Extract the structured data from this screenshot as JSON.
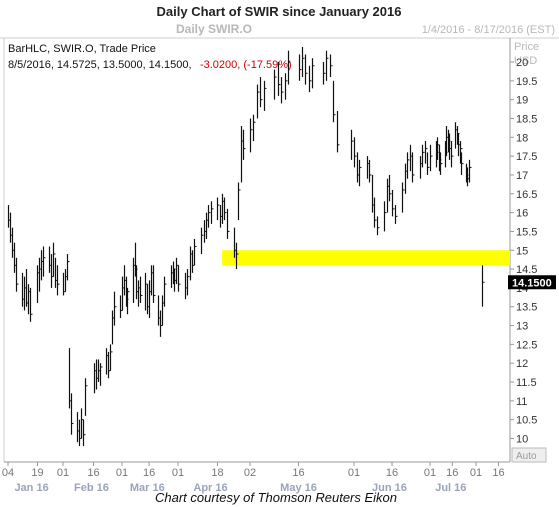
{
  "header": {
    "title": "Daily Chart of SWIR since January 2016",
    "instrument": "Daily SWIR.O",
    "date_range": "1/4/2016 - 8/17/2016 (EST)"
  },
  "legend": {
    "line1": "BarHLC, SWIR.O, Trade Price",
    "line2_values": "8/5/2016, 14.5725, 13.5000, 14.1500,",
    "line2_change": "-3.0200, (-17.59%)"
  },
  "y_axis_label": {
    "line1": "Price",
    "line2": "USD"
  },
  "auto_button": "Auto",
  "footer": "Chart courtesy of Thomson Reuters Eikon",
  "colors": {
    "bars": "#111111",
    "highlight": "#ffff00",
    "label_bg": "#000000",
    "change": "#cc0000"
  },
  "chart_data": {
    "type": "bar",
    "style": "HLC bars (high-low-close)",
    "series_name": "SWIR.O Trade Price",
    "ylim": [
      9.6,
      20.4
    ],
    "y_ticks": [
      10,
      10.5,
      11,
      11.5,
      12,
      12.5,
      13,
      13.5,
      14,
      14.5,
      15,
      15.5,
      16,
      16.5,
      17,
      17.5,
      18,
      18.5,
      19,
      19.5,
      20
    ],
    "x_tick_labels": [
      "04",
      "19",
      "01",
      "16",
      "01",
      "16",
      "01",
      "18",
      "02",
      "16",
      "01",
      "16",
      "01",
      "16",
      "01",
      "16"
    ],
    "x_month_labels": [
      "Jan 16",
      "Feb 16",
      "Mar 16",
      "Apr 16",
      "May 16",
      "Jun 16",
      "Jul 16"
    ],
    "last_price_label": "14.1500",
    "highlight_band": {
      "y_low": 14.6,
      "y_high": 15.0,
      "from_date": "2016-04-20"
    },
    "bars": [
      {
        "d": "2016-01-04",
        "h": 16.2,
        "l": 15.6,
        "c": 15.8
      },
      {
        "d": "2016-01-05",
        "h": 16.0,
        "l": 15.2,
        "c": 15.4
      },
      {
        "d": "2016-01-06",
        "h": 15.6,
        "l": 14.8,
        "c": 15.0
      },
      {
        "d": "2016-01-07",
        "h": 15.2,
        "l": 14.4,
        "c": 14.6
      },
      {
        "d": "2016-01-08",
        "h": 14.8,
        "l": 13.9,
        "c": 14.1
      },
      {
        "d": "2016-01-11",
        "h": 14.4,
        "l": 13.5,
        "c": 13.7
      },
      {
        "d": "2016-01-12",
        "h": 14.3,
        "l": 13.4,
        "c": 14.0
      },
      {
        "d": "2016-01-13",
        "h": 14.5,
        "l": 13.5,
        "c": 13.6
      },
      {
        "d": "2016-01-14",
        "h": 14.1,
        "l": 13.3,
        "c": 13.9
      },
      {
        "d": "2016-01-15",
        "h": 14.0,
        "l": 13.1,
        "c": 13.3
      },
      {
        "d": "2016-01-19",
        "h": 14.6,
        "l": 13.6,
        "c": 14.4
      },
      {
        "d": "2016-01-20",
        "h": 14.8,
        "l": 13.9,
        "c": 14.5
      },
      {
        "d": "2016-01-21",
        "h": 15.0,
        "l": 14.2,
        "c": 14.7
      },
      {
        "d": "2016-01-22",
        "h": 15.1,
        "l": 14.3,
        "c": 14.8
      },
      {
        "d": "2016-01-25",
        "h": 15.1,
        "l": 14.4,
        "c": 14.6
      },
      {
        "d": "2016-01-26",
        "h": 14.9,
        "l": 14.0,
        "c": 14.3
      },
      {
        "d": "2016-01-27",
        "h": 15.2,
        "l": 14.3,
        "c": 14.9
      },
      {
        "d": "2016-01-28",
        "h": 14.8,
        "l": 14.0,
        "c": 14.2
      },
      {
        "d": "2016-01-29",
        "h": 14.6,
        "l": 13.8,
        "c": 14.1
      },
      {
        "d": "2016-02-01",
        "h": 14.4,
        "l": 13.8,
        "c": 13.9
      },
      {
        "d": "2016-02-02",
        "h": 14.5,
        "l": 13.9,
        "c": 14.3
      },
      {
        "d": "2016-02-03",
        "h": 14.9,
        "l": 14.2,
        "c": 14.7
      },
      {
        "d": "2016-02-04",
        "h": 12.4,
        "l": 10.8,
        "c": 11.0
      },
      {
        "d": "2016-02-05",
        "h": 11.2,
        "l": 10.1,
        "c": 10.4
      },
      {
        "d": "2016-02-08",
        "h": 10.7,
        "l": 9.9,
        "c": 10.2
      },
      {
        "d": "2016-02-09",
        "h": 10.5,
        "l": 9.8,
        "c": 10.0
      },
      {
        "d": "2016-02-10",
        "h": 10.8,
        "l": 10.0,
        "c": 10.5
      },
      {
        "d": "2016-02-11",
        "h": 10.5,
        "l": 9.8,
        "c": 10.1
      },
      {
        "d": "2016-02-12",
        "h": 11.6,
        "l": 10.6,
        "c": 11.4
      },
      {
        "d": "2016-02-16",
        "h": 12.0,
        "l": 11.2,
        "c": 11.8
      },
      {
        "d": "2016-02-17",
        "h": 12.1,
        "l": 11.3,
        "c": 11.6
      },
      {
        "d": "2016-02-18",
        "h": 12.1,
        "l": 11.5,
        "c": 11.8
      },
      {
        "d": "2016-02-19",
        "h": 12.0,
        "l": 11.4,
        "c": 11.9
      },
      {
        "d": "2016-02-22",
        "h": 12.4,
        "l": 11.7,
        "c": 12.2
      },
      {
        "d": "2016-02-23",
        "h": 12.3,
        "l": 11.6,
        "c": 11.8
      },
      {
        "d": "2016-02-24",
        "h": 12.5,
        "l": 11.8,
        "c": 12.3
      },
      {
        "d": "2016-02-25",
        "h": 13.4,
        "l": 12.5,
        "c": 13.2
      },
      {
        "d": "2016-02-26",
        "h": 13.9,
        "l": 13.0,
        "c": 13.5
      },
      {
        "d": "2016-02-29",
        "h": 13.8,
        "l": 13.2,
        "c": 13.4
      },
      {
        "d": "2016-03-01",
        "h": 14.3,
        "l": 13.4,
        "c": 14.0
      },
      {
        "d": "2016-03-02",
        "h": 14.6,
        "l": 13.8,
        "c": 14.2
      },
      {
        "d": "2016-03-03",
        "h": 14.3,
        "l": 13.5,
        "c": 13.7
      },
      {
        "d": "2016-03-04",
        "h": 14.0,
        "l": 13.3,
        "c": 13.9
      },
      {
        "d": "2016-03-07",
        "h": 14.8,
        "l": 13.6,
        "c": 14.6
      },
      {
        "d": "2016-03-08",
        "h": 15.2,
        "l": 14.3,
        "c": 14.5
      },
      {
        "d": "2016-03-09",
        "h": 14.6,
        "l": 13.7,
        "c": 13.9
      },
      {
        "d": "2016-03-10",
        "h": 14.2,
        "l": 13.5,
        "c": 14.0
      },
      {
        "d": "2016-03-11",
        "h": 14.3,
        "l": 13.6,
        "c": 13.8
      },
      {
        "d": "2016-03-14",
        "h": 14.4,
        "l": 13.4,
        "c": 14.1
      },
      {
        "d": "2016-03-15",
        "h": 14.1,
        "l": 13.3,
        "c": 13.5
      },
      {
        "d": "2016-03-16",
        "h": 14.2,
        "l": 13.2,
        "c": 13.9
      },
      {
        "d": "2016-03-17",
        "h": 14.6,
        "l": 13.8,
        "c": 14.4
      },
      {
        "d": "2016-03-18",
        "h": 14.6,
        "l": 13.6,
        "c": 13.8
      },
      {
        "d": "2016-03-21",
        "h": 13.8,
        "l": 13.0,
        "c": 13.2
      },
      {
        "d": "2016-03-22",
        "h": 13.4,
        "l": 12.7,
        "c": 13.0
      },
      {
        "d": "2016-03-23",
        "h": 13.8,
        "l": 13.0,
        "c": 13.6
      },
      {
        "d": "2016-03-24",
        "h": 14.3,
        "l": 13.5,
        "c": 14.1
      },
      {
        "d": "2016-03-28",
        "h": 14.6,
        "l": 14.0,
        "c": 14.4
      },
      {
        "d": "2016-03-29",
        "h": 14.7,
        "l": 14.1,
        "c": 14.5
      },
      {
        "d": "2016-03-30",
        "h": 14.5,
        "l": 13.9,
        "c": 14.2
      },
      {
        "d": "2016-03-31",
        "h": 14.8,
        "l": 14.1,
        "c": 14.6
      },
      {
        "d": "2016-04-01",
        "h": 14.6,
        "l": 13.9,
        "c": 14.1
      },
      {
        "d": "2016-04-04",
        "h": 14.4,
        "l": 13.7,
        "c": 14.0
      },
      {
        "d": "2016-04-05",
        "h": 14.5,
        "l": 13.8,
        "c": 14.3
      },
      {
        "d": "2016-04-06",
        "h": 15.1,
        "l": 14.2,
        "c": 14.9
      },
      {
        "d": "2016-04-07",
        "h": 15.0,
        "l": 14.4,
        "c": 14.6
      },
      {
        "d": "2016-04-08",
        "h": 15.3,
        "l": 14.6,
        "c": 15.1
      },
      {
        "d": "2016-04-11",
        "h": 15.6,
        "l": 14.9,
        "c": 15.4
      },
      {
        "d": "2016-04-12",
        "h": 15.8,
        "l": 15.2,
        "c": 15.5
      },
      {
        "d": "2016-04-13",
        "h": 16.0,
        "l": 15.3,
        "c": 15.8
      },
      {
        "d": "2016-04-14",
        "h": 16.2,
        "l": 15.6,
        "c": 16.0
      },
      {
        "d": "2016-04-15",
        "h": 16.3,
        "l": 15.7,
        "c": 16.1
      },
      {
        "d": "2016-04-18",
        "h": 16.4,
        "l": 15.8,
        "c": 16.2
      },
      {
        "d": "2016-04-19",
        "h": 16.2,
        "l": 15.6,
        "c": 15.9
      },
      {
        "d": "2016-04-20",
        "h": 16.5,
        "l": 15.7,
        "c": 16.3
      },
      {
        "d": "2016-04-21",
        "h": 16.4,
        "l": 15.8,
        "c": 16.0
      },
      {
        "d": "2016-04-22",
        "h": 16.1,
        "l": 15.3,
        "c": 15.5
      },
      {
        "d": "2016-04-25",
        "h": 15.6,
        "l": 14.8,
        "c": 15.0
      },
      {
        "d": "2016-04-26",
        "h": 15.2,
        "l": 14.5,
        "c": 14.9
      },
      {
        "d": "2016-04-27",
        "h": 16.8,
        "l": 15.8,
        "c": 16.6
      },
      {
        "d": "2016-04-28",
        "h": 18.3,
        "l": 16.8,
        "c": 17.9
      },
      {
        "d": "2016-04-29",
        "h": 18.2,
        "l": 17.4,
        "c": 17.7
      },
      {
        "d": "2016-05-02",
        "h": 18.5,
        "l": 17.6,
        "c": 18.2
      },
      {
        "d": "2016-05-03",
        "h": 18.6,
        "l": 17.9,
        "c": 18.4
      },
      {
        "d": "2016-05-04",
        "h": 19.4,
        "l": 18.5,
        "c": 19.2
      },
      {
        "d": "2016-05-05",
        "h": 19.6,
        "l": 18.8,
        "c": 19.0
      },
      {
        "d": "2016-05-06",
        "h": 19.5,
        "l": 18.7,
        "c": 19.3
      },
      {
        "d": "2016-05-09",
        "h": 19.8,
        "l": 19.0,
        "c": 19.6
      },
      {
        "d": "2016-05-10",
        "h": 20.0,
        "l": 19.1,
        "c": 19.4
      },
      {
        "d": "2016-05-11",
        "h": 19.6,
        "l": 18.9,
        "c": 19.2
      },
      {
        "d": "2016-05-12",
        "h": 19.7,
        "l": 19.0,
        "c": 19.5
      },
      {
        "d": "2016-05-13",
        "h": 20.3,
        "l": 19.4,
        "c": 20.0
      },
      {
        "d": "2016-05-16",
        "h": 20.2,
        "l": 19.5,
        "c": 19.8
      },
      {
        "d": "2016-05-17",
        "h": 20.4,
        "l": 19.6,
        "c": 20.1
      },
      {
        "d": "2016-05-18",
        "h": 20.2,
        "l": 19.4,
        "c": 19.7
      },
      {
        "d": "2016-05-19",
        "h": 19.9,
        "l": 19.2,
        "c": 19.5
      },
      {
        "d": "2016-05-20",
        "h": 20.1,
        "l": 19.3,
        "c": 19.9
      },
      {
        "d": "2016-05-23",
        "h": 20.0,
        "l": 19.4,
        "c": 19.7
      },
      {
        "d": "2016-05-24",
        "h": 20.3,
        "l": 19.5,
        "c": 20.1
      },
      {
        "d": "2016-05-25",
        "h": 20.2,
        "l": 19.6,
        "c": 19.9
      },
      {
        "d": "2016-05-26",
        "h": 19.5,
        "l": 18.4,
        "c": 18.6
      },
      {
        "d": "2016-05-27",
        "h": 18.7,
        "l": 17.6,
        "c": 17.8
      },
      {
        "d": "2016-05-31",
        "h": 18.2,
        "l": 17.4,
        "c": 17.9
      },
      {
        "d": "2016-06-01",
        "h": 18.0,
        "l": 17.2,
        "c": 17.5
      },
      {
        "d": "2016-06-02",
        "h": 17.6,
        "l": 16.8,
        "c": 17.0
      },
      {
        "d": "2016-06-03",
        "h": 17.4,
        "l": 16.7,
        "c": 17.2
      },
      {
        "d": "2016-06-06",
        "h": 17.5,
        "l": 16.9,
        "c": 17.3
      },
      {
        "d": "2016-06-07",
        "h": 17.4,
        "l": 16.8,
        "c": 17.0
      },
      {
        "d": "2016-06-08",
        "h": 17.0,
        "l": 16.0,
        "c": 16.2
      },
      {
        "d": "2016-06-09",
        "h": 16.4,
        "l": 15.6,
        "c": 15.8
      },
      {
        "d": "2016-06-10",
        "h": 15.9,
        "l": 15.4,
        "c": 15.6
      },
      {
        "d": "2016-06-13",
        "h": 16.3,
        "l": 15.5,
        "c": 16.0
      },
      {
        "d": "2016-06-14",
        "h": 16.9,
        "l": 16.0,
        "c": 16.7
      },
      {
        "d": "2016-06-15",
        "h": 17.0,
        "l": 16.3,
        "c": 16.5
      },
      {
        "d": "2016-06-16",
        "h": 16.6,
        "l": 15.9,
        "c": 16.1
      },
      {
        "d": "2016-06-17",
        "h": 16.2,
        "l": 15.7,
        "c": 15.9
      },
      {
        "d": "2016-06-20",
        "h": 16.8,
        "l": 16.0,
        "c": 16.6
      },
      {
        "d": "2016-06-21",
        "h": 17.3,
        "l": 16.5,
        "c": 17.1
      },
      {
        "d": "2016-06-22",
        "h": 17.6,
        "l": 16.9,
        "c": 17.4
      },
      {
        "d": "2016-06-23",
        "h": 17.8,
        "l": 17.1,
        "c": 17.5
      },
      {
        "d": "2016-06-24",
        "h": 17.6,
        "l": 16.8,
        "c": 17.0
      },
      {
        "d": "2016-06-27",
        "h": 17.5,
        "l": 16.9,
        "c": 17.3
      },
      {
        "d": "2016-06-28",
        "h": 17.8,
        "l": 17.2,
        "c": 17.6
      },
      {
        "d": "2016-06-29",
        "h": 17.9,
        "l": 17.3,
        "c": 17.7
      },
      {
        "d": "2016-06-30",
        "h": 17.6,
        "l": 17.0,
        "c": 17.2
      },
      {
        "d": "2016-07-01",
        "h": 17.8,
        "l": 17.1,
        "c": 17.5
      },
      {
        "d": "2016-07-05",
        "h": 17.9,
        "l": 17.2,
        "c": 17.6
      },
      {
        "d": "2016-07-06",
        "h": 18.0,
        "l": 17.4,
        "c": 17.8
      },
      {
        "d": "2016-07-07",
        "h": 17.8,
        "l": 17.1,
        "c": 17.4
      },
      {
        "d": "2016-07-08",
        "h": 17.6,
        "l": 17.0,
        "c": 17.3
      },
      {
        "d": "2016-07-11",
        "h": 17.9,
        "l": 17.2,
        "c": 17.6
      },
      {
        "d": "2016-07-12",
        "h": 18.3,
        "l": 17.5,
        "c": 18.0
      },
      {
        "d": "2016-07-13",
        "h": 18.2,
        "l": 17.6,
        "c": 17.9
      },
      {
        "d": "2016-07-14",
        "h": 18.1,
        "l": 17.4,
        "c": 17.7
      },
      {
        "d": "2016-07-15",
        "h": 17.9,
        "l": 17.2,
        "c": 17.5
      },
      {
        "d": "2016-07-18",
        "h": 18.4,
        "l": 17.7,
        "c": 18.2
      },
      {
        "d": "2016-07-19",
        "h": 18.3,
        "l": 17.8,
        "c": 18.1
      },
      {
        "d": "2016-07-20",
        "h": 18.1,
        "l": 17.5,
        "c": 17.8
      },
      {
        "d": "2016-07-21",
        "h": 17.9,
        "l": 17.3,
        "c": 17.7
      },
      {
        "d": "2016-07-22",
        "h": 17.6,
        "l": 17.0,
        "c": 17.3
      },
      {
        "d": "2016-07-25",
        "h": 17.3,
        "l": 16.8,
        "c": 17.0
      },
      {
        "d": "2016-07-26",
        "h": 17.2,
        "l": 16.7,
        "c": 16.9
      },
      {
        "d": "2016-07-27",
        "h": 17.4,
        "l": 16.8,
        "c": 17.2
      },
      {
        "d": "2016-08-05",
        "h": 14.6,
        "l": 13.5,
        "c": 14.15
      }
    ]
  }
}
